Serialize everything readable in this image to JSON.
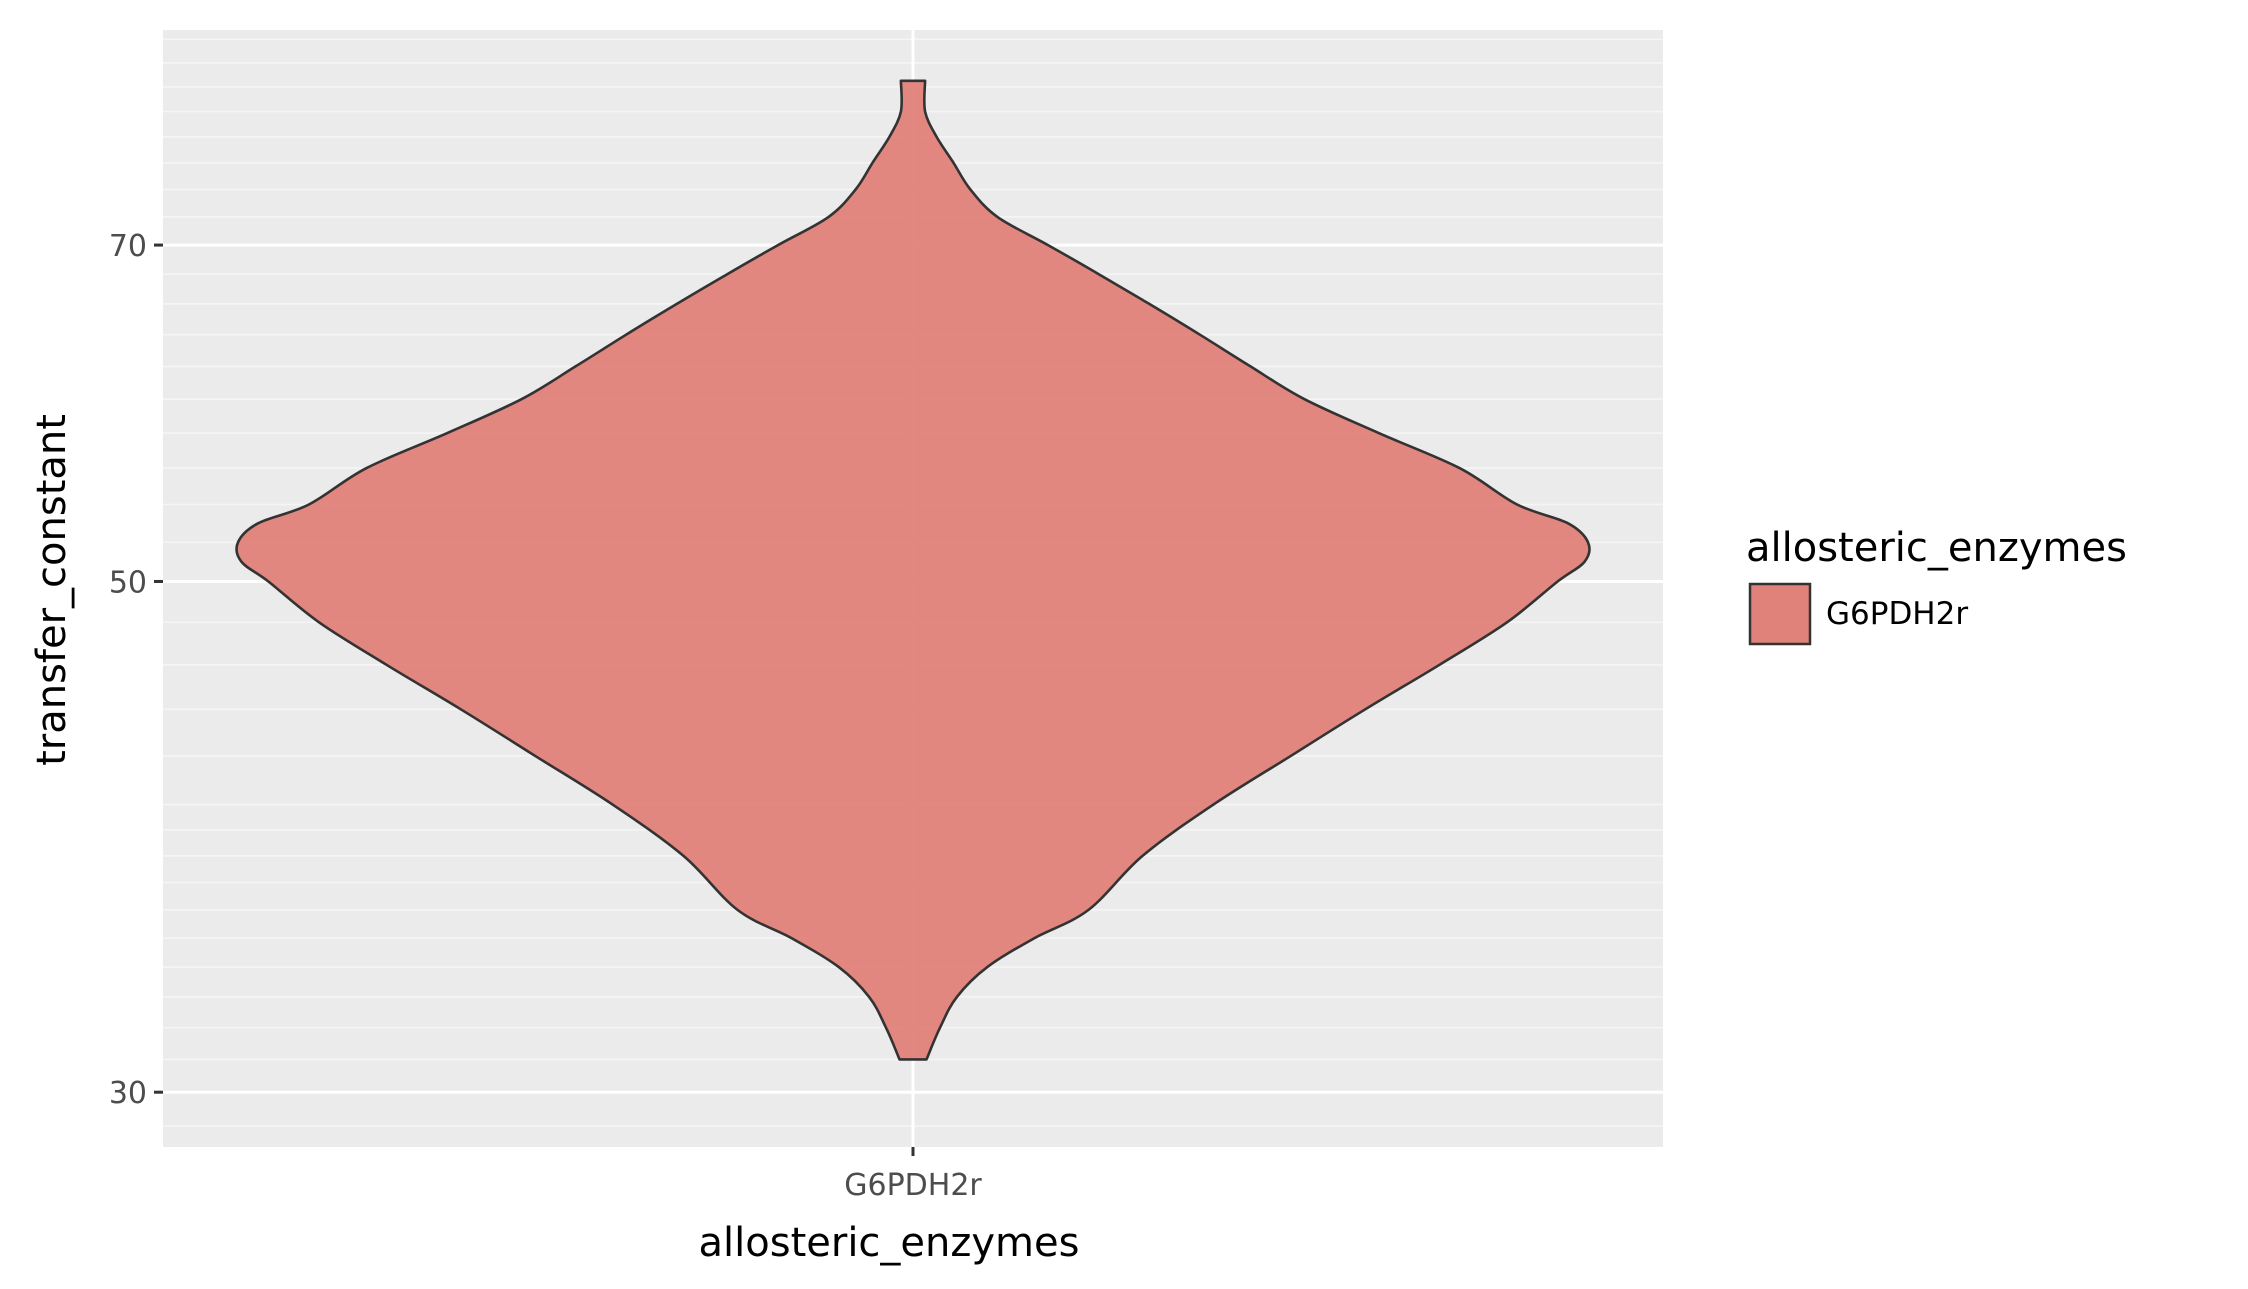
{
  "chart_data": {
    "type": "violin",
    "categories": [
      "G6PDH2r"
    ],
    "xlabel": "allosteric_enzymes",
    "ylabel": "transfer_constant",
    "y_scale": "log",
    "ylim": [
      28.4,
      86.8
    ],
    "y_ticks": [
      30,
      50,
      70
    ],
    "y_tick_labels": [
      "30",
      "50",
      "70"
    ],
    "grid": true,
    "legend": {
      "title": "allosteric_enzymes",
      "position": "right",
      "entries": [
        {
          "label": "G6PDH2r",
          "color": "#e0827a"
        }
      ]
    },
    "series": [
      {
        "name": "G6PDH2r",
        "color": "#e0827a",
        "y_min": 31.0,
        "y_max": 82.5,
        "profile": [
          [
            31.0,
            0.02
          ],
          [
            32.0,
            0.04
          ],
          [
            33.0,
            0.065
          ],
          [
            34.0,
            0.11
          ],
          [
            35.0,
            0.18
          ],
          [
            36.0,
            0.26
          ],
          [
            38.0,
            0.34
          ],
          [
            40.0,
            0.445
          ],
          [
            42.0,
            0.56
          ],
          [
            44.0,
            0.67
          ],
          [
            46.0,
            0.78
          ],
          [
            48.0,
            0.88
          ],
          [
            50.0,
            0.955
          ],
          [
            51.0,
            0.995
          ],
          [
            52.0,
            1.0
          ],
          [
            53.0,
            0.97
          ],
          [
            54.0,
            0.895
          ],
          [
            56.0,
            0.81
          ],
          [
            58.0,
            0.69
          ],
          [
            60.0,
            0.58
          ],
          [
            62.0,
            0.5
          ],
          [
            64.0,
            0.425
          ],
          [
            66.0,
            0.35
          ],
          [
            68.0,
            0.275
          ],
          [
            70.0,
            0.2
          ],
          [
            72.0,
            0.125
          ],
          [
            74.0,
            0.085
          ],
          [
            76.0,
            0.06
          ],
          [
            78.0,
            0.035
          ],
          [
            80.0,
            0.018
          ],
          [
            82.5,
            0.018
          ]
        ]
      }
    ]
  },
  "colors": {
    "panel_background": "#ebebeb",
    "grid_major": "#ffffff",
    "grid_minor": "#f5f5f5",
    "violin_fill": "#e0827a",
    "violin_stroke": "#333333"
  }
}
